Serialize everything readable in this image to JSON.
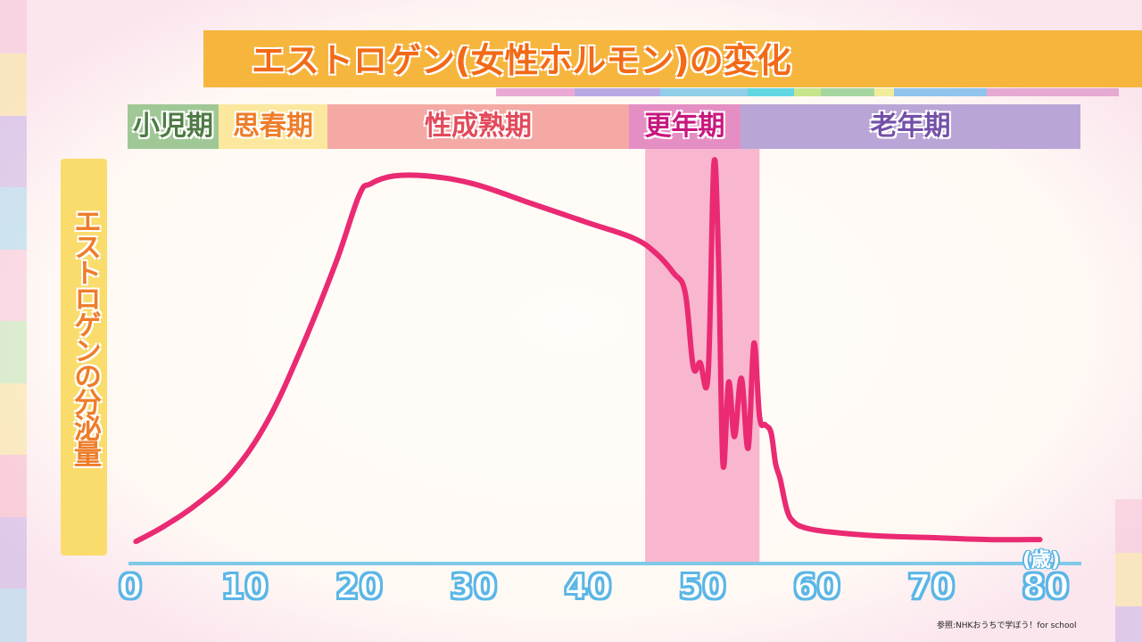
{
  "colors": {
    "curve": "#ea2a72",
    "menopause_band": "#f8b7cf",
    "axis": "#7ec8e8",
    "title_bar": "#f6b63e"
  },
  "chart_data": {
    "type": "line",
    "title": "エストロゲン(女性ホルモン)の変化",
    "xlabel": "(歳)",
    "ylabel": "エストロゲンの分泌量",
    "xlim": [
      0,
      80
    ],
    "ylim": [
      0,
      100
    ],
    "x_ticks": [
      "0",
      "10",
      "20",
      "30",
      "40",
      "50",
      "60",
      "70",
      "80"
    ],
    "grid": false,
    "legend": "none",
    "stages": [
      {
        "label": "小児期",
        "from": 0,
        "to": 8
      },
      {
        "label": "思春期",
        "from": 8,
        "to": 18
      },
      {
        "label": "性成熟期",
        "from": 18,
        "to": 45
      },
      {
        "label": "更年期",
        "from": 45,
        "to": 55
      },
      {
        "label": "老年期",
        "from": 55,
        "to": 80
      }
    ],
    "menopause_band": [
      45,
      55
    ],
    "series": [
      {
        "x": [
          0.5,
          3,
          6,
          9,
          12,
          15,
          18,
          20,
          21,
          23,
          26,
          30,
          35,
          40,
          44,
          46,
          47.5,
          48.5,
          49.2,
          49.8,
          50.5,
          51,
          51.4,
          51.8,
          52.3,
          52.8,
          53.4,
          54,
          54.5,
          55,
          55.5,
          56,
          56.4,
          56.8,
          57.4,
          58,
          59,
          61,
          65,
          70,
          75,
          79.5
        ],
        "y": [
          2,
          6,
          12,
          20,
          33,
          52,
          74,
          91,
          94,
          96,
          96,
          94,
          89,
          84,
          80,
          76,
          71,
          66,
          47,
          48,
          45,
          99,
          76,
          22,
          43,
          29,
          44,
          26,
          53,
          34,
          32,
          30,
          22,
          18,
          10,
          7,
          5.5,
          4.5,
          3.5,
          3,
          2.5,
          2.5
        ]
      }
    ]
  },
  "source": "参照:NHKおうちで学ぼう！for school"
}
